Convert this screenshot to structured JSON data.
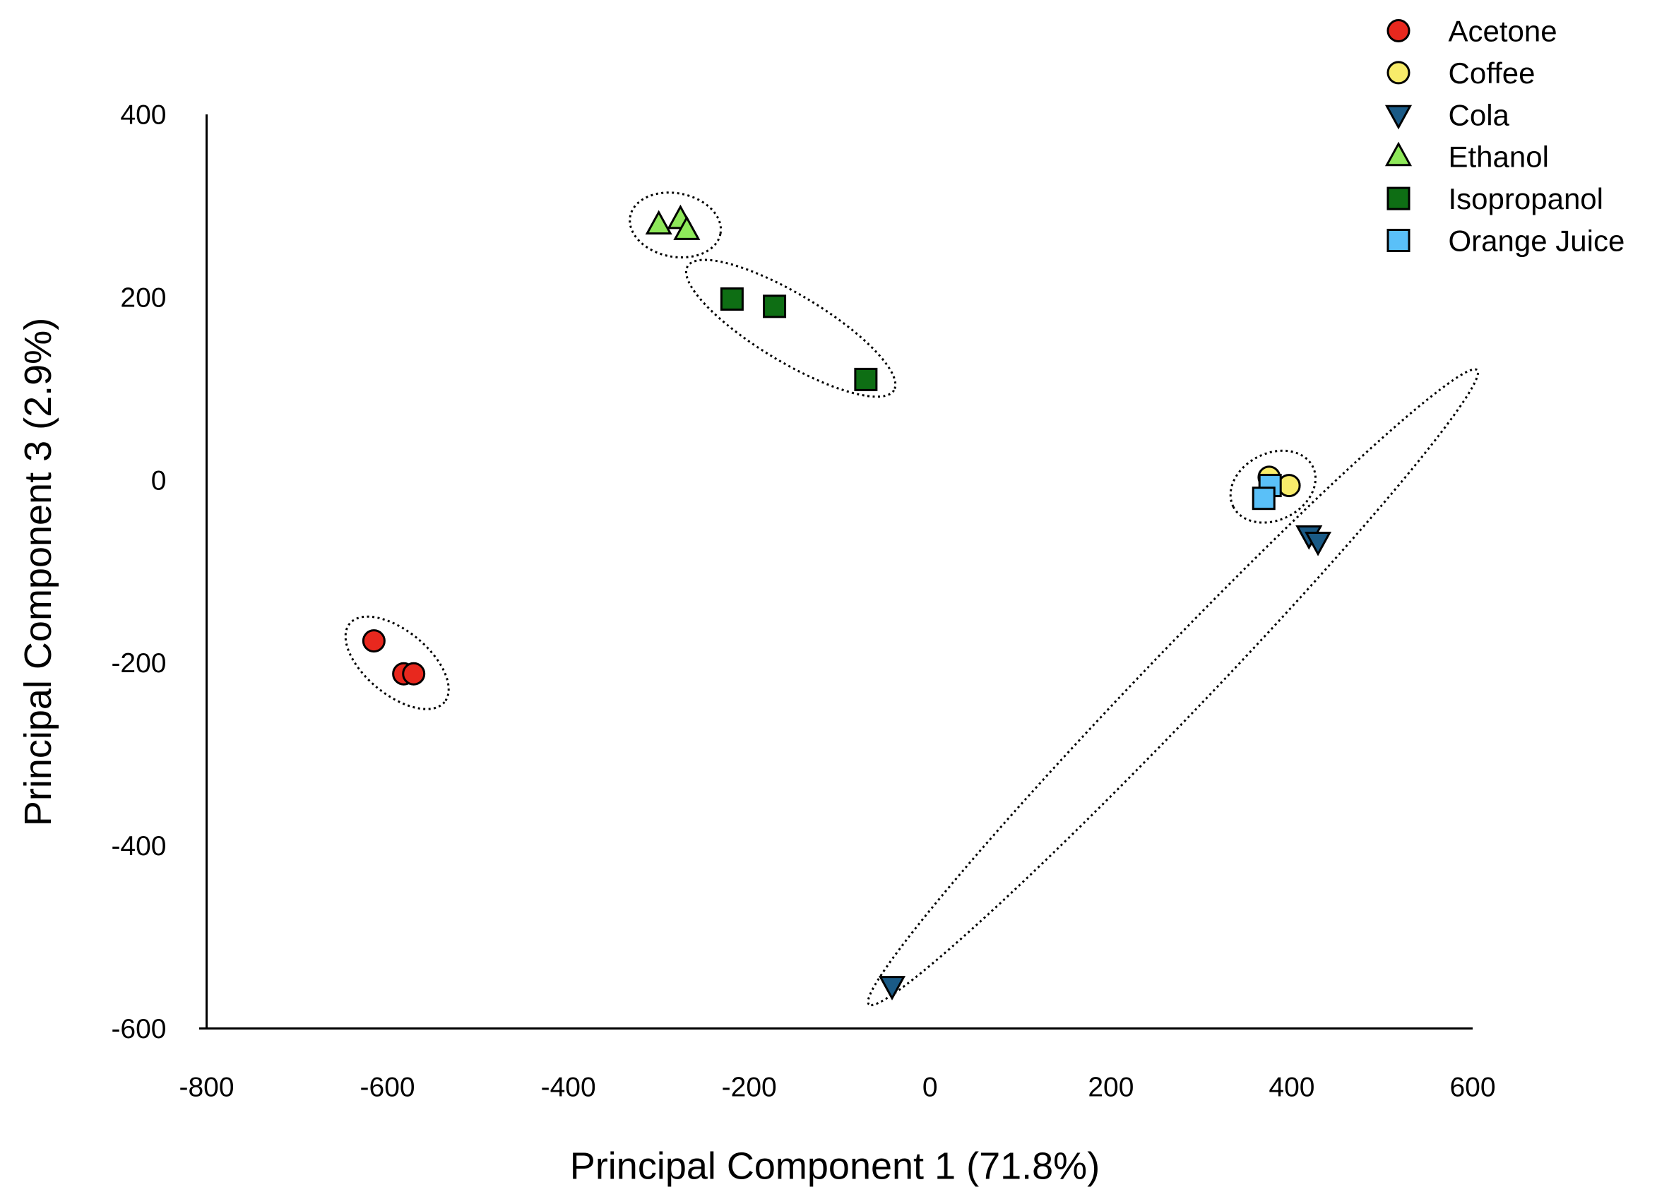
{
  "chart_data": {
    "type": "scatter",
    "xlabel": "Principal Component 1 (71.8%)",
    "ylabel": "Principal Component 3 (2.9%)",
    "xlim": [
      -800,
      600
    ],
    "ylim": [
      -600,
      400
    ],
    "xticks": [
      -800,
      -600,
      -400,
      -200,
      0,
      200,
      400,
      600
    ],
    "yticks": [
      -600,
      -400,
      -200,
      0,
      200,
      400
    ],
    "grid": false,
    "legend": "top-right",
    "series": [
      {
        "name": "Acetone",
        "marker": "circle",
        "color": "#e8281e",
        "points": [
          [
            -615,
            -176
          ],
          [
            -582,
            -212
          ],
          [
            -571,
            -212
          ]
        ]
      },
      {
        "name": "Coffee",
        "marker": "circle",
        "color": "#f8ec6a",
        "points": [
          [
            375,
            3
          ],
          [
            397,
            -6
          ]
        ]
      },
      {
        "name": "Cola",
        "marker": "triangle-down",
        "color": "#1a5a86",
        "points": [
          [
            419,
            -60
          ],
          [
            429,
            -67
          ],
          [
            -42,
            -553
          ]
        ]
      },
      {
        "name": "Ethanol",
        "marker": "triangle-up",
        "color": "#8ee85a",
        "points": [
          [
            -300,
            279
          ],
          [
            -276,
            285
          ],
          [
            -269,
            273
          ]
        ]
      },
      {
        "name": "Isopropanol",
        "marker": "square",
        "color": "#0e6e14",
        "points": [
          [
            -219,
            198
          ],
          [
            -172,
            190
          ],
          [
            -71,
            110
          ]
        ]
      },
      {
        "name": "Orange Juice",
        "marker": "square",
        "color": "#5ac0f8",
        "points": [
          [
            376,
            -6
          ],
          [
            369,
            -20
          ]
        ]
      }
    ],
    "clusters": [
      [
        "Acetone"
      ],
      [
        "Coffee",
        "Orange Juice"
      ],
      [
        "Cola"
      ],
      [
        "Ethanol"
      ],
      [
        "Isopropanol"
      ]
    ]
  }
}
